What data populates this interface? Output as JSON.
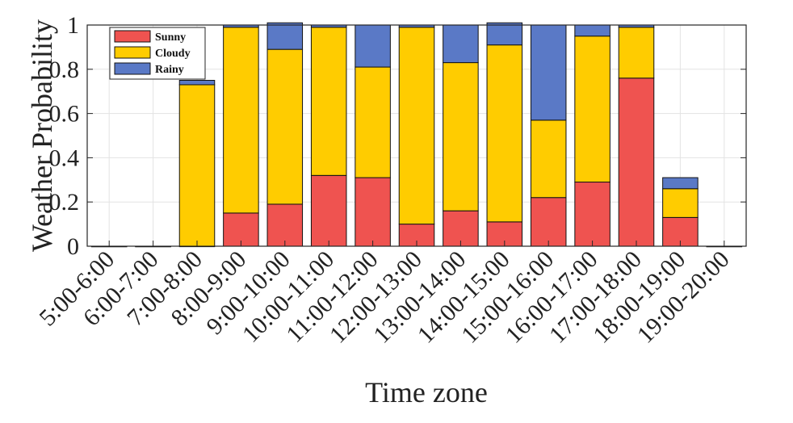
{
  "chart_data": {
    "type": "bar",
    "stacked": true,
    "title": "",
    "xlabel": "Time zone",
    "ylabel": "Weather Probability",
    "ylim": [
      0,
      1
    ],
    "yticks": [
      0,
      0.2,
      0.4,
      0.6,
      0.8,
      1
    ],
    "ytick_labels": [
      "0",
      "0.2",
      "0.4",
      "0.6",
      "0.8",
      "1"
    ],
    "grid": true,
    "legend_position": "top-left",
    "categories": [
      "5:00-6:00",
      "6:00-7:00",
      "7:00-8:00",
      "8:00-9:00",
      "9:00-10:00",
      "10:00-11:00",
      "11:00-12:00",
      "12:00-13:00",
      "13:00-14:00",
      "14:00-15:00",
      "15:00-16:00",
      "16:00-17:00",
      "17:00-18:00",
      "18:00-19:00",
      "19:00-20:00"
    ],
    "series": [
      {
        "name": "Sunny",
        "color": "#ef5350",
        "values": [
          0,
          0,
          0,
          0.15,
          0.19,
          0.32,
          0.31,
          0.1,
          0.16,
          0.11,
          0.22,
          0.29,
          0.76,
          0.13,
          0
        ]
      },
      {
        "name": "Cloudy",
        "color": "#ffcc00",
        "values": [
          0,
          0,
          0.73,
          0.84,
          0.7,
          0.67,
          0.5,
          0.89,
          0.67,
          0.8,
          0.35,
          0.66,
          0.23,
          0.13,
          0
        ]
      },
      {
        "name": "Rainy",
        "color": "#5a79c6",
        "values": [
          0,
          0,
          0.02,
          0.01,
          0.12,
          0.01,
          0.19,
          0.01,
          0.17,
          0.1,
          0.43,
          0.05,
          0.01,
          0.05,
          0
        ]
      }
    ]
  }
}
